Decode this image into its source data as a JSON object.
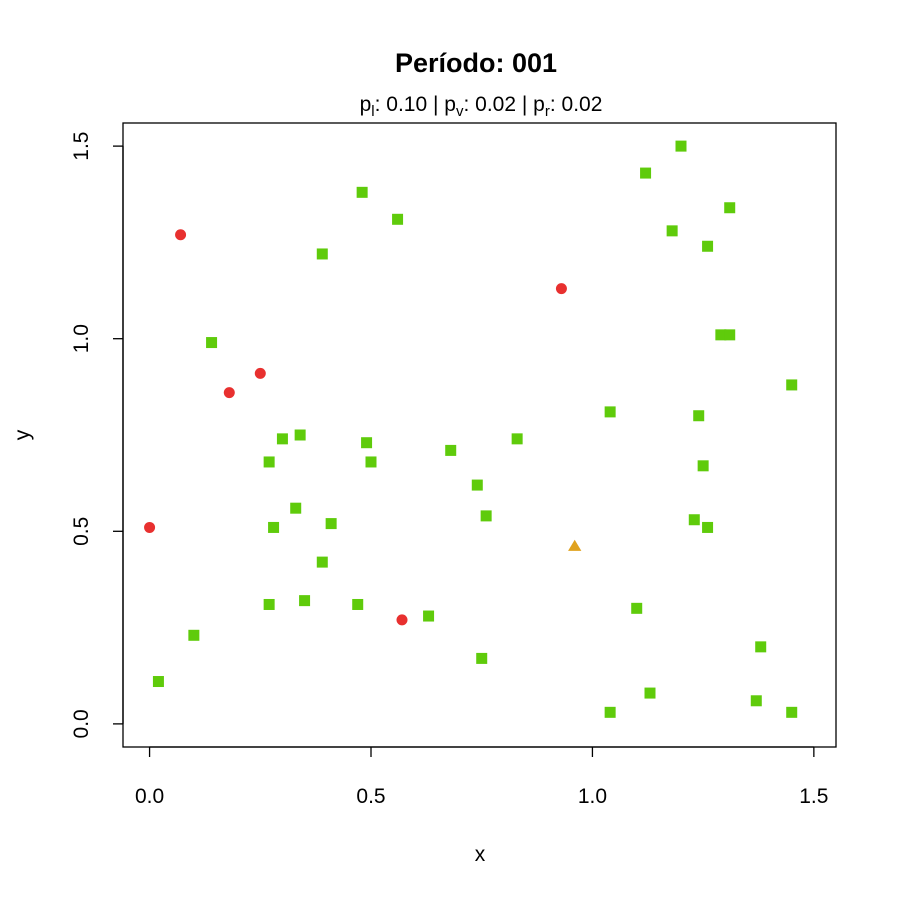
{
  "chart_data": {
    "type": "scatter",
    "title": "Período: 001",
    "subtitle": {
      "parts": [
        {
          "base": "p",
          "sub": "l",
          "value": ": 0.10"
        },
        {
          "base": "p",
          "sub": "v",
          "value": ": 0.02"
        },
        {
          "base": "p",
          "sub": "r",
          "value": ": 0.02"
        }
      ],
      "separator": "|"
    },
    "xlabel": "x",
    "ylabel": "y",
    "xlim": [
      -0.06,
      1.55
    ],
    "ylim": [
      -0.06,
      1.56
    ],
    "xticks": [
      0.0,
      0.5,
      1.0,
      1.5
    ],
    "yticks": [
      0.0,
      0.5,
      1.0,
      1.5
    ],
    "xtick_labels": [
      "0.0",
      "0.5",
      "1.0",
      "1.5"
    ],
    "ytick_labels": [
      "0.0",
      "0.5",
      "1.0",
      "1.5"
    ],
    "grid": false,
    "legend": "none",
    "series": [
      {
        "marker": "circle",
        "color": "#e8302f",
        "points": [
          [
            0.0,
            0.51
          ],
          [
            0.07,
            1.27
          ],
          [
            0.18,
            0.86
          ],
          [
            0.25,
            0.91
          ],
          [
            0.57,
            0.27
          ],
          [
            0.93,
            1.13
          ]
        ]
      },
      {
        "marker": "square",
        "color": "#5fcb0b",
        "points": [
          [
            0.02,
            0.11
          ],
          [
            0.1,
            0.23
          ],
          [
            0.14,
            0.99
          ],
          [
            0.27,
            0.68
          ],
          [
            0.27,
            0.31
          ],
          [
            0.28,
            0.51
          ],
          [
            0.3,
            0.74
          ],
          [
            0.33,
            0.56
          ],
          [
            0.34,
            0.75
          ],
          [
            0.35,
            0.32
          ],
          [
            0.39,
            1.22
          ],
          [
            0.39,
            0.42
          ],
          [
            0.41,
            0.52
          ],
          [
            0.47,
            0.31
          ],
          [
            0.48,
            1.38
          ],
          [
            0.49,
            0.73
          ],
          [
            0.5,
            0.68
          ],
          [
            0.56,
            1.31
          ],
          [
            0.63,
            0.28
          ],
          [
            0.68,
            0.71
          ],
          [
            0.74,
            0.62
          ],
          [
            0.75,
            0.17
          ],
          [
            0.76,
            0.54
          ],
          [
            0.83,
            0.74
          ],
          [
            1.04,
            0.03
          ],
          [
            1.04,
            0.81
          ],
          [
            1.1,
            0.3
          ],
          [
            1.12,
            1.43
          ],
          [
            1.13,
            0.08
          ],
          [
            1.18,
            1.28
          ],
          [
            1.2,
            1.5
          ],
          [
            1.23,
            0.53
          ],
          [
            1.24,
            0.8
          ],
          [
            1.25,
            0.67
          ],
          [
            1.26,
            0.51
          ],
          [
            1.26,
            1.24
          ],
          [
            1.29,
            1.01
          ],
          [
            1.31,
            1.01
          ],
          [
            1.31,
            1.34
          ],
          [
            1.37,
            0.06
          ],
          [
            1.38,
            0.2
          ],
          [
            1.45,
            0.88
          ],
          [
            1.45,
            0.03
          ]
        ]
      },
      {
        "marker": "triangle",
        "color": "#e0a21e",
        "points": [
          [
            0.96,
            0.46
          ]
        ]
      }
    ]
  }
}
